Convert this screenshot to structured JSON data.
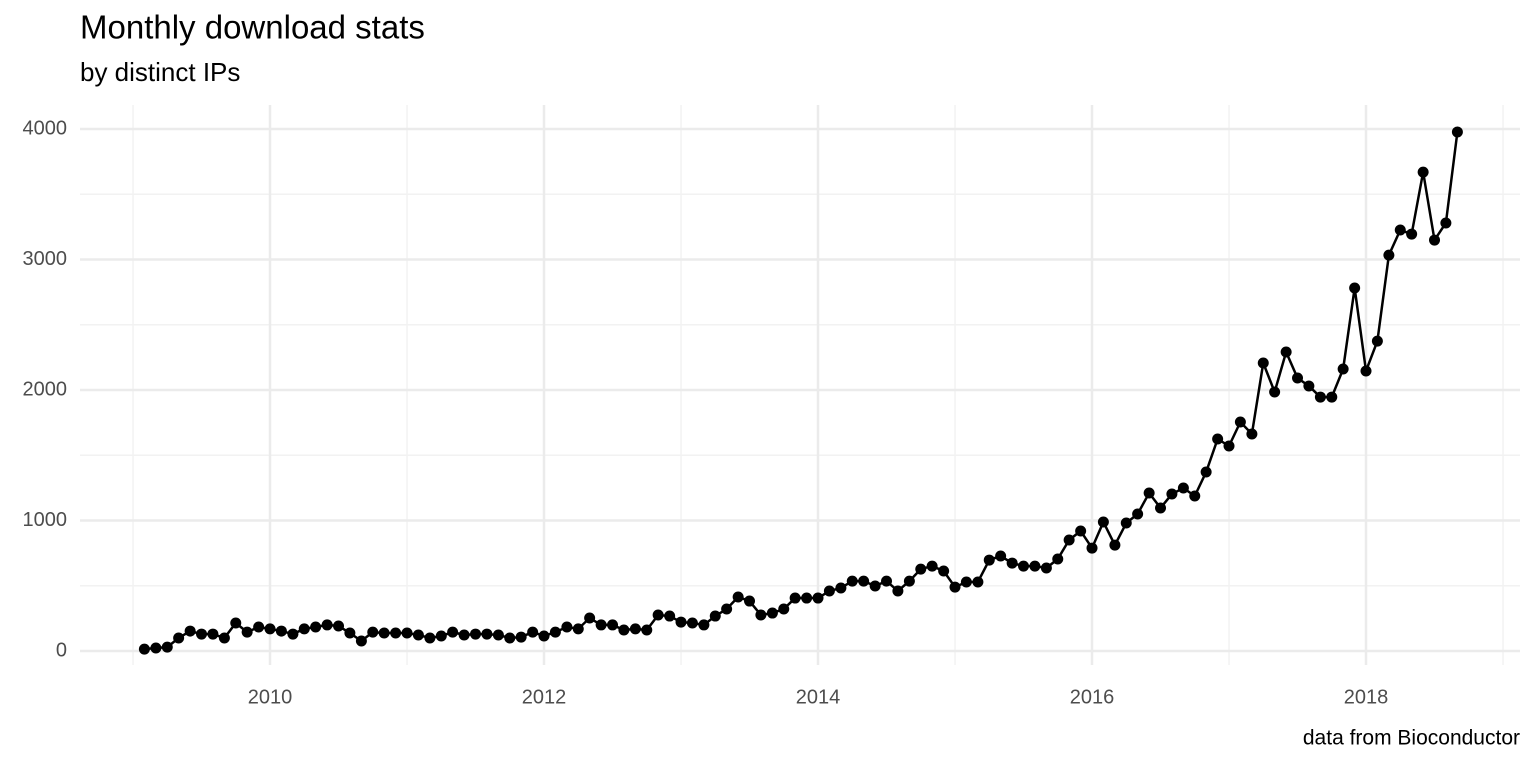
{
  "chart_data": {
    "type": "line",
    "title": "Monthly download stats",
    "subtitle": "by distinct IPs",
    "caption": "data from Bioconductor",
    "x": [
      2009.083,
      2009.167,
      2009.25,
      2009.333,
      2009.417,
      2009.5,
      2009.583,
      2009.667,
      2009.75,
      2009.833,
      2009.917,
      2010,
      2010.083,
      2010.167,
      2010.25,
      2010.333,
      2010.417,
      2010.5,
      2010.583,
      2010.667,
      2010.75,
      2010.833,
      2010.917,
      2011,
      2011.083,
      2011.167,
      2011.25,
      2011.333,
      2011.417,
      2011.5,
      2011.583,
      2011.667,
      2011.75,
      2011.833,
      2011.917,
      2012,
      2012.083,
      2012.167,
      2012.25,
      2012.333,
      2012.417,
      2012.5,
      2012.583,
      2012.667,
      2012.75,
      2012.833,
      2012.917,
      2013,
      2013.083,
      2013.167,
      2013.25,
      2013.333,
      2013.417,
      2013.5,
      2013.583,
      2013.667,
      2013.75,
      2013.833,
      2013.917,
      2014,
      2014.083,
      2014.167,
      2014.25,
      2014.333,
      2014.417,
      2014.5,
      2014.583,
      2014.667,
      2014.75,
      2014.833,
      2014.917,
      2015,
      2015.083,
      2015.167,
      2015.25,
      2015.333,
      2015.417,
      2015.5,
      2015.583,
      2015.667,
      2015.75,
      2015.833,
      2015.917,
      2016,
      2016.083,
      2016.167,
      2016.25,
      2016.333,
      2016.417,
      2016.5,
      2016.583,
      2016.667,
      2016.75,
      2016.833,
      2016.917,
      2017,
      2017.083,
      2017.167,
      2017.25,
      2017.333,
      2017.417,
      2017.5,
      2017.583,
      2017.667,
      2017.75,
      2017.833,
      2017.917,
      2018,
      2018.083,
      2018.167,
      2018.25,
      2018.333,
      2018.417,
      2018.5,
      2018.583,
      2018.667
    ],
    "series": [
      {
        "color": "#000000",
        "values": [
          15,
          23,
          30,
          100,
          153,
          130,
          130,
          100,
          215,
          145,
          184,
          170,
          153,
          130,
          170,
          184,
          200,
          192,
          138,
          77,
          145,
          138,
          138,
          138,
          123,
          100,
          115,
          145,
          123,
          130,
          130,
          123,
          100,
          107,
          145,
          115,
          145,
          184,
          170,
          253,
          200,
          200,
          161,
          170,
          161,
          276,
          268,
          222,
          215,
          200,
          268,
          322,
          414,
          383,
          276,
          291,
          322,
          406,
          406,
          406,
          460,
          483,
          536,
          536,
          498,
          536,
          460,
          536,
          628,
          651,
          613,
          490,
          529,
          529,
          697,
          728,
          674,
          651,
          651,
          636,
          705,
          851,
          920,
          789,
          989,
          812,
          981,
          1050,
          1211,
          1096,
          1203,
          1249,
          1188,
          1372,
          1625,
          1571,
          1755,
          1663,
          2207,
          1985,
          2291,
          2092,
          2031,
          1946,
          1946,
          2161,
          2782,
          2146,
          2375,
          3034,
          3226,
          3195,
          3670,
          3149,
          3280,
          3977
        ]
      }
    ],
    "xlim": [
      2008.613,
      2019.124
    ],
    "xticks": [
      2010,
      2012,
      2014,
      2016,
      2018
    ],
    "x_minor_ticks": [
      2009,
      2011,
      2013,
      2015,
      2017,
      2019
    ],
    "ylim": [
      -107,
      4184
    ],
    "yticks": [
      0,
      1000,
      2000,
      3000,
      4000
    ],
    "y_minor_ticks": [
      500,
      1500,
      2500,
      3500
    ],
    "grid": true
  }
}
